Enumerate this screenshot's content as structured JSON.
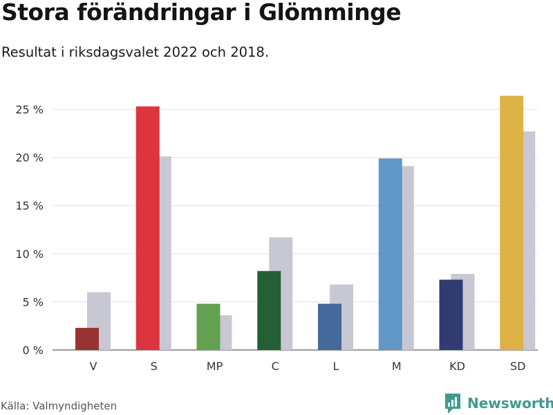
{
  "header": {
    "title": "Stora förändringar i Glömminge",
    "subtitle": "Resultat i riksdagsvalet 2022 och 2018."
  },
  "footer": {
    "source": "Källa: Valmyndigheten",
    "brand": "Newsworthy",
    "brand_icon": "bar-chart-logo-icon",
    "brand_color": "#3f9a90"
  },
  "chart_data": {
    "type": "bar",
    "categories": [
      "V",
      "S",
      "MP",
      "C",
      "L",
      "M",
      "KD",
      "SD"
    ],
    "series": [
      {
        "values": [
          2.3,
          25.3,
          4.8,
          8.2,
          4.8,
          19.9,
          7.3,
          26.4
        ],
        "colors": [
          "#993333",
          "#dd3540",
          "#63a150",
          "#255f36",
          "#44699a",
          "#6298c8",
          "#303b71",
          "#dcb344"
        ]
      },
      {
        "values": [
          6.0,
          20.1,
          3.6,
          11.7,
          6.8,
          19.1,
          7.9,
          22.7
        ],
        "color": "#c8c7d4"
      }
    ],
    "ylim": [
      0,
      25
    ],
    "yticks": [
      "0 %",
      "5 %",
      "10 %",
      "15 %",
      "20 %",
      "25 %"
    ],
    "grid": true
  }
}
